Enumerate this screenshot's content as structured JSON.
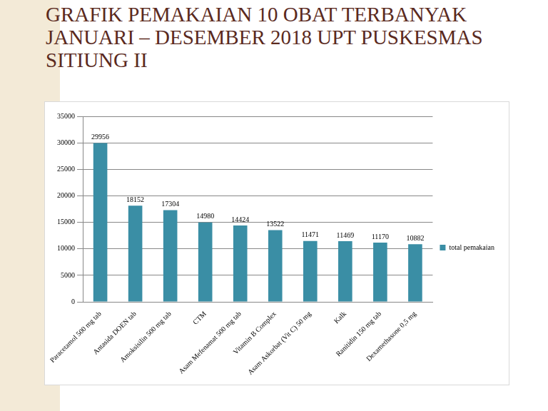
{
  "chart_data": {
    "type": "bar",
    "title": "GRAFIK PEMAKAIAN 10 OBAT TERBANYAK JANUARI – DESEMBER 2018 UPT PUSKESMAS SITIUNG II",
    "categories": [
      "Paracetamol 500 mg tab",
      "Antasida DOEN tab",
      "Amoksisilin 500 mg tab",
      "CTM",
      "Asam Mefenamat 500 mg tab",
      "Vitamin B Complex",
      "Asam Askorbat (Vit C) 50 mg",
      "Kalk",
      "Ranitidin 150 mg tab",
      "Dexamethasone 0,5 mg"
    ],
    "series": [
      {
        "name": "total pemakaian",
        "color": "#3a8ea5",
        "values": [
          29956,
          18152,
          17304,
          14980,
          14424,
          13522,
          11471,
          11469,
          11170,
          10882
        ]
      }
    ],
    "ylim": [
      0,
      35000
    ],
    "yticks": [
      0,
      5000,
      10000,
      15000,
      20000,
      25000,
      30000,
      35000
    ],
    "grid": true,
    "legend": "right",
    "data_labels": true
  }
}
